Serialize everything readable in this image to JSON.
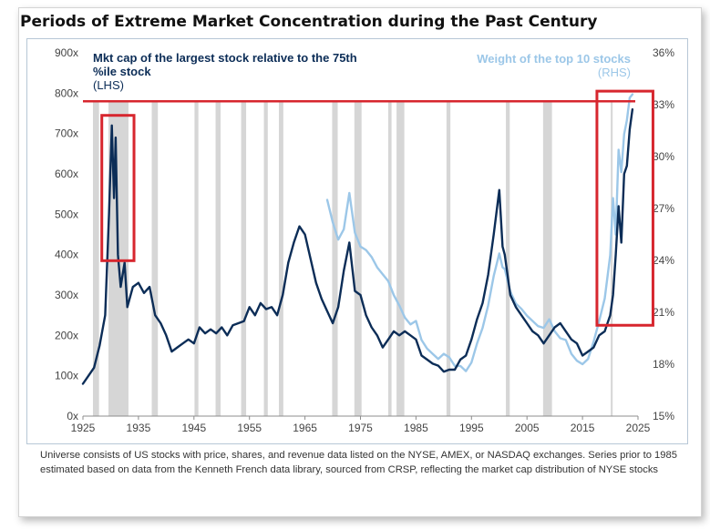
{
  "page": {
    "title": "Periods of Extreme Market Concentration during the Past Century",
    "footnote": "Universe consists of US stocks with price, shares, and revenue data listed on the NYSE, AMEX, or NASDAQ exchanges. Series prior to 1985 estimated based on data from the Kenneth French data library, sourced from CRSP, reflecting the market cap distribution of NYSE stocks"
  },
  "chart_data": {
    "type": "line",
    "title": "Periods of Extreme Market Concentration during the Past Century",
    "x_range": [
      1925,
      2025
    ],
    "x_ticks": [
      "1925",
      "1935",
      "1945",
      "1955",
      "1965",
      "1975",
      "1985",
      "1995",
      "2005",
      "2015",
      "2025"
    ],
    "y_left": {
      "range": [
        0,
        900
      ],
      "ticks": [
        "0x",
        "100x",
        "200x",
        "300x",
        "400x",
        "500x",
        "600x",
        "700x",
        "800x",
        "900x"
      ],
      "label": "Mkt cap of the largest stock relative to the 75th %ile stock",
      "label_unit": "(LHS)"
    },
    "y_right": {
      "range": [
        15,
        36
      ],
      "ticks": [
        "15%",
        "18%",
        "21%",
        "24%",
        "27%",
        "30%",
        "33%",
        "36%"
      ],
      "label": "Weight of the top 10 stocks",
      "label_unit": "(RHS)"
    },
    "recessions": [
      [
        1926.8,
        1927.9
      ],
      [
        1929.6,
        1933.2
      ],
      [
        1937.4,
        1938.5
      ],
      [
        1945.1,
        1945.8
      ],
      [
        1948.9,
        1949.8
      ],
      [
        1953.5,
        1954.4
      ],
      [
        1957.6,
        1958.3
      ],
      [
        1960.3,
        1961.1
      ],
      [
        1969.9,
        1970.9
      ],
      [
        1973.9,
        1975.2
      ],
      [
        1980.0,
        1980.6
      ],
      [
        1981.5,
        1982.9
      ],
      [
        1990.5,
        1991.2
      ],
      [
        2001.2,
        2001.9
      ],
      [
        2007.9,
        2009.5
      ],
      [
        2020.1,
        2020.4
      ]
    ],
    "series": [
      {
        "name": "Mkt cap of the largest stock relative to the 75th %ile stock",
        "axis": "left",
        "color": "#0c2d57",
        "x": [
          1925,
          1926,
          1927,
          1928,
          1929,
          1929.7,
          1930.2,
          1930.6,
          1930.9,
          1931.3,
          1931.8,
          1932.5,
          1933,
          1934,
          1935,
          1936,
          1937,
          1938,
          1939,
          1940,
          1941,
          1942,
          1943,
          1944,
          1945,
          1946,
          1947,
          1948,
          1949,
          1950,
          1951,
          1952,
          1953,
          1954,
          1955,
          1956,
          1957,
          1958,
          1959,
          1960,
          1961,
          1962,
          1963,
          1964,
          1965,
          1966,
          1967,
          1968,
          1969,
          1970,
          1971,
          1972,
          1973,
          1974,
          1975,
          1976,
          1977,
          1978,
          1979,
          1980,
          1981,
          1982,
          1983,
          1984,
          1985,
          1986,
          1987,
          1988,
          1989,
          1990,
          1991,
          1992,
          1993,
          1994,
          1995,
          1996,
          1997,
          1998,
          1999,
          2000,
          2000.6,
          2001,
          2002,
          2003,
          2004,
          2005,
          2006,
          2007,
          2008,
          2009,
          2010,
          2011,
          2012,
          2013,
          2014,
          2015,
          2016,
          2017,
          2018,
          2019,
          2020,
          2020.5,
          2021,
          2021.5,
          2022,
          2022.5,
          2023,
          2023.5,
          2024
        ],
        "values": [
          80,
          100,
          120,
          175,
          250,
          500,
          720,
          540,
          690,
          400,
          320,
          380,
          270,
          320,
          330,
          305,
          320,
          250,
          230,
          200,
          160,
          170,
          180,
          190,
          180,
          220,
          205,
          215,
          205,
          220,
          200,
          225,
          230,
          235,
          270,
          250,
          280,
          265,
          270,
          250,
          300,
          380,
          430,
          470,
          450,
          390,
          330,
          290,
          260,
          230,
          270,
          360,
          430,
          310,
          300,
          250,
          220,
          200,
          170,
          190,
          210,
          200,
          210,
          200,
          190,
          150,
          140,
          130,
          125,
          110,
          115,
          115,
          140,
          150,
          190,
          240,
          280,
          350,
          450,
          560,
          420,
          400,
          300,
          270,
          250,
          230,
          210,
          200,
          180,
          200,
          220,
          230,
          210,
          190,
          180,
          150,
          160,
          170,
          200,
          210,
          250,
          300,
          400,
          520,
          430,
          600,
          620,
          710,
          760
        ]
      },
      {
        "name": "Weight of the top 10 stocks",
        "axis": "right",
        "color": "#9cc7e8",
        "x": [
          1969,
          1970,
          1971,
          1972,
          1973,
          1974,
          1975,
          1976,
          1977,
          1978,
          1979,
          1980,
          1981,
          1982,
          1983,
          1984,
          1985,
          1986,
          1987,
          1988,
          1989,
          1990,
          1991,
          1992,
          1993,
          1994,
          1995,
          1996,
          1997,
          1998,
          1999,
          2000,
          2000.6,
          2001,
          2002,
          2003,
          2004,
          2005,
          2006,
          2007,
          2008,
          2009,
          2010,
          2011,
          2012,
          2013,
          2014,
          2015,
          2016,
          2017,
          2018,
          2019,
          2020,
          2020.5,
          2021,
          2021.5,
          2022,
          2022.5,
          2023,
          2023.5,
          2024
        ],
        "values": [
          27.5,
          26.2,
          25.2,
          25.8,
          27.9,
          25.6,
          24.8,
          24.6,
          24.2,
          23.6,
          23.2,
          22.8,
          22.0,
          21.4,
          20.7,
          20.3,
          20.5,
          19.4,
          18.9,
          18.6,
          18.3,
          18.6,
          18.4,
          17.9,
          17.9,
          17.6,
          18.1,
          19.2,
          20.1,
          21.4,
          23.1,
          24.4,
          23.6,
          23.5,
          22.2,
          21.5,
          21.2,
          20.8,
          20.5,
          20.2,
          20.1,
          20.6,
          19.9,
          19.5,
          19.4,
          18.6,
          18.2,
          18.0,
          18.3,
          19.3,
          20.5,
          21.8,
          24.3,
          27.6,
          25.5,
          30.4,
          29.1,
          31.3,
          32.1,
          33.4,
          33.6
        ]
      }
    ],
    "highlight_boxes": [
      {
        "x": [
          1928.4,
          1934.2
        ],
        "y_left": [
          385,
          745
        ]
      },
      {
        "x": [
          2017.6,
          2027.7
        ],
        "y_left": [
          225,
          805
        ]
      }
    ],
    "reference_line": {
      "y_left": 780,
      "x": [
        1925,
        2025
      ],
      "color": "#d7262e"
    },
    "grid": false,
    "legend": "inline text labels at top-left and top-right"
  }
}
